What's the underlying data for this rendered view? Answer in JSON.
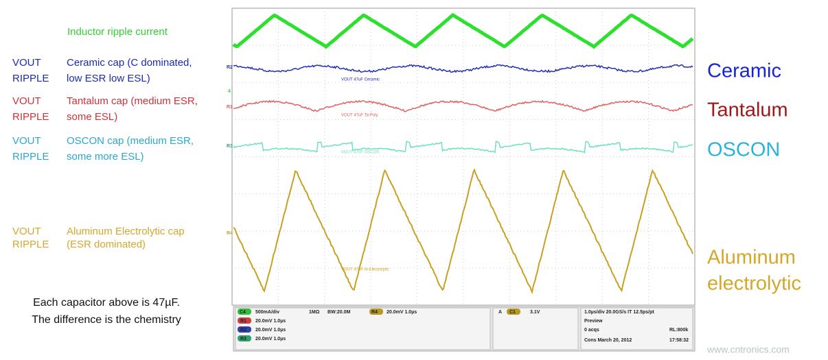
{
  "annotations": {
    "inductor_label": "Inductor ripple current",
    "rows": [
      {
        "name": "VOUT",
        "sub": "RIPPLE",
        "desc": [
          "Ceramic cap (C dominated,",
          "low ESR low ESL)"
        ]
      },
      {
        "name": "VOUT",
        "sub": "RIPPLE",
        "desc": [
          "Tantalum cap (medium ESR,",
          "some ESL)"
        ]
      },
      {
        "name": "VOUT",
        "sub": "RIPPLE",
        "desc": [
          "OSCON cap (medium ESR,",
          "some more ESL)"
        ]
      },
      {
        "name": "VOUT",
        "sub": "RIPPLE",
        "desc": [
          "Aluminum Electrolytic cap",
          "(ESR dominated)"
        ]
      }
    ],
    "note": [
      "Each capacitor above is 47µF.",
      "The difference is the chemistry"
    ]
  },
  "legend": {
    "ceramic": "Ceramic",
    "tantalum": "Tantalum",
    "oscon": "OSCON",
    "aluminum": [
      "Aluminum",
      "electrolytic"
    ]
  },
  "scope": {
    "trace_labels": [
      "VOUT 47uF Ceramic",
      "VOUT 47uF Ta-Poly",
      "VOUT 47uF OSCON",
      "VOUT 47uF Al-Electrolytic"
    ],
    "markers": [
      "R1",
      "R2",
      "R3",
      "R4",
      "4"
    ],
    "status": {
      "c4_tag": "C4",
      "c4_scale": "500mA/div",
      "impedance": "1MΩ",
      "bandwidth": "BW:20.0M",
      "r4_tag": "R4",
      "r4_scale": "20.0mV 1.0µs",
      "r1_tag": "R1",
      "r1_scale": "20.0mV 1.0µs",
      "r2_tag": "R2",
      "r2_scale": "20.0mV 1.0µs",
      "r3_tag": "R3",
      "r3_scale": "20.0mV 1.0µs",
      "trigger_mode": "A",
      "trigger_src": "C1",
      "trigger_level": "3.1V",
      "timebase": "1.0µs/div  20.0GS/s  IT  12.5ps/pt",
      "preview": "Preview",
      "acqs": "0 acqs",
      "record": "RL:800k",
      "date": "Cons  March 20, 2012",
      "time": "17:58:32"
    }
  },
  "watermark": "www.cntronics.com"
}
